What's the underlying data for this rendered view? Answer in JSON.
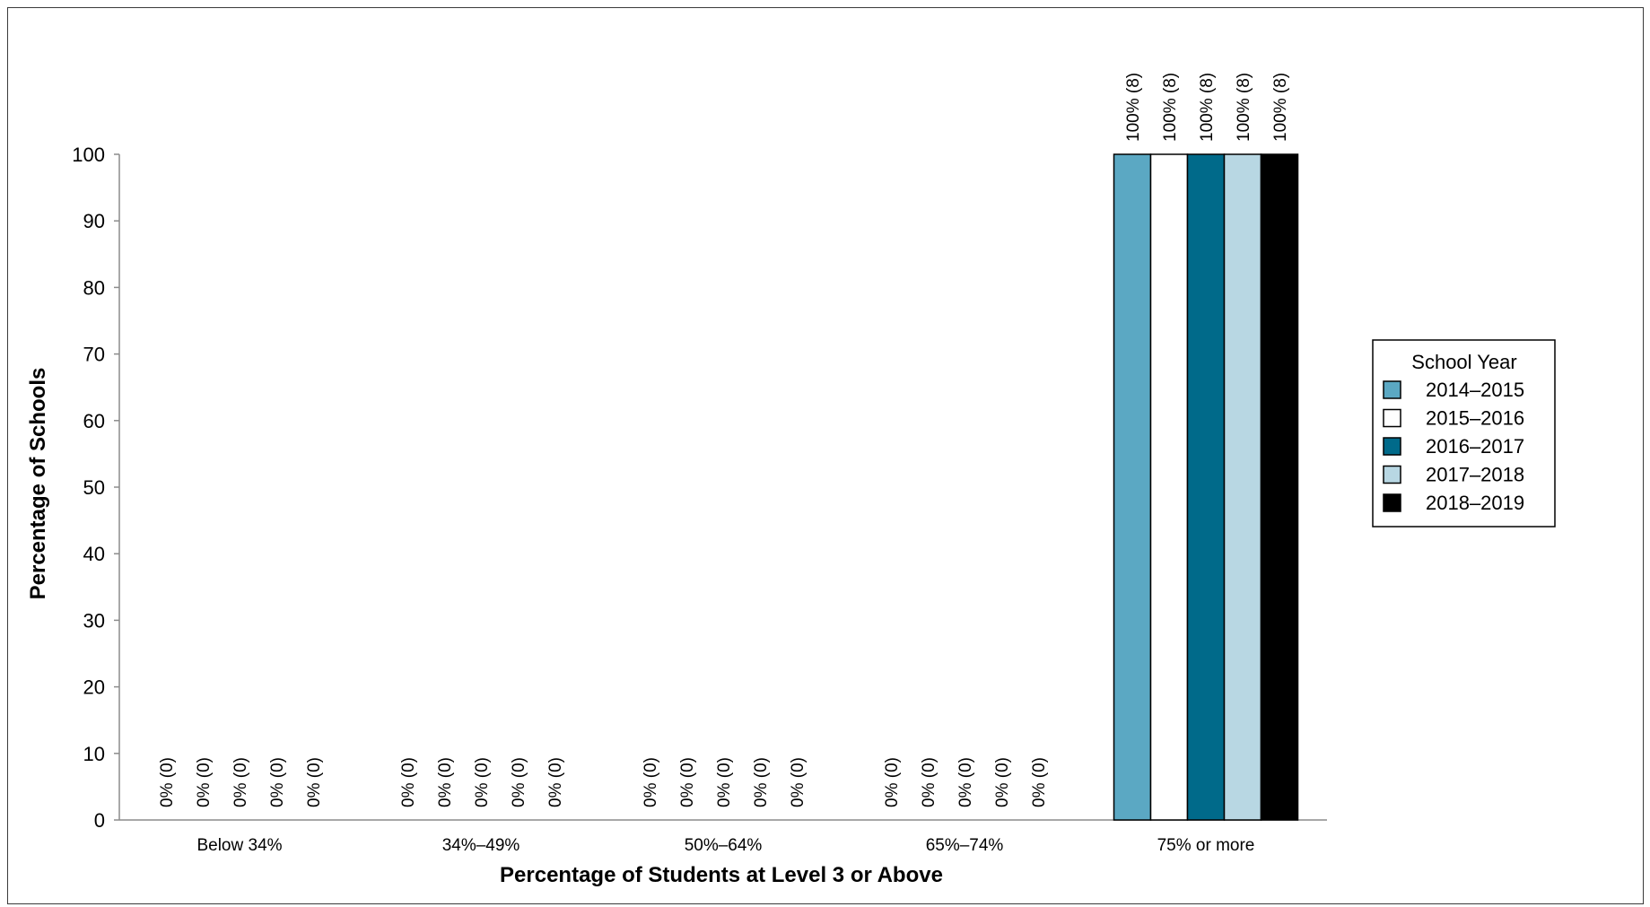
{
  "chart_data": {
    "type": "bar",
    "title": "",
    "xlabel": "Percentage of Students at Level 3 or Above",
    "ylabel": "Percentage of Schools",
    "ylim": [
      0,
      100
    ],
    "yticks": [
      0,
      10,
      20,
      30,
      40,
      50,
      60,
      70,
      80,
      90,
      100
    ],
    "categories": [
      "Below 34%",
      "34%–49%",
      "50%–64%",
      "65%–74%",
      "75% or more"
    ],
    "legend": {
      "title": "School Year",
      "position": "right"
    },
    "grid": false,
    "series": [
      {
        "name": "2014–2015",
        "color": "#5ba8c3",
        "values": [
          0,
          0,
          0,
          0,
          100
        ],
        "labels": [
          "0% (0)",
          "0% (0)",
          "0% (0)",
          "0% (0)",
          "100% (8)"
        ]
      },
      {
        "name": "2015–2016",
        "color": "#ffffff",
        "values": [
          0,
          0,
          0,
          0,
          100
        ],
        "labels": [
          "0% (0)",
          "0% (0)",
          "0% (0)",
          "0% (0)",
          "100% (8)"
        ]
      },
      {
        "name": "2016–2017",
        "color": "#006a8a",
        "values": [
          0,
          0,
          0,
          0,
          100
        ],
        "labels": [
          "0% (0)",
          "0% (0)",
          "0% (0)",
          "0% (0)",
          "100% (8)"
        ]
      },
      {
        "name": "2017–2018",
        "color": "#b8d7e3",
        "values": [
          0,
          0,
          0,
          0,
          100
        ],
        "labels": [
          "0% (0)",
          "0% (0)",
          "0% (0)",
          "0% (0)",
          "100% (8)"
        ]
      },
      {
        "name": "2018–2019",
        "color": "#000000",
        "values": [
          0,
          0,
          0,
          0,
          100
        ],
        "labels": [
          "0% (0)",
          "0% (0)",
          "0% (0)",
          "0% (0)",
          "100% (8)"
        ]
      }
    ]
  }
}
